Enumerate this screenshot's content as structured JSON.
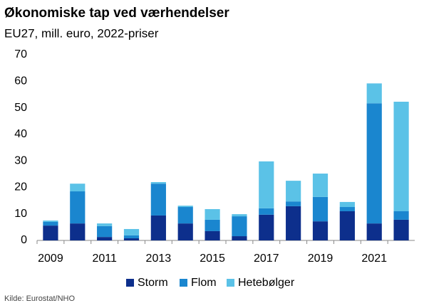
{
  "chart_data": {
    "type": "stacked-bar",
    "title": "Økonomiske tap ved værhendelser",
    "subtitle": "EU27, mill. euro, 2022-priser",
    "source": "Kilde: Eurostat/NHO",
    "categories": [
      "2009",
      null,
      "2011",
      null,
      "2013",
      null,
      "2015",
      null,
      "2017",
      null,
      "2019",
      null,
      "2021",
      null
    ],
    "series": [
      {
        "name": "Storm",
        "color": "#0d2f8c",
        "values": [
          5.6,
          6.4,
          1.3,
          0.8,
          9.4,
          6.4,
          3.5,
          1.6,
          9.7,
          12.9,
          7.2,
          11.0,
          6.4,
          7.8
        ]
      },
      {
        "name": "Flom",
        "color": "#1a86cf",
        "values": [
          1.4,
          12.1,
          4.1,
          1.1,
          12.0,
          6.2,
          4.3,
          7.5,
          2.4,
          1.8,
          9.2,
          1.6,
          45.3,
          3.2
        ]
      },
      {
        "name": "Hetebølger",
        "color": "#5bc2e7",
        "values": [
          0.5,
          2.9,
          1.0,
          2.4,
          0.6,
          0.5,
          4.0,
          0.8,
          17.7,
          7.8,
          8.8,
          1.9,
          7.5,
          41.3
        ]
      }
    ],
    "ylim": [
      0,
      70
    ],
    "yticks": [
      0,
      10,
      20,
      30,
      40,
      50,
      60,
      70
    ],
    "grid": false,
    "legend": "bottom"
  }
}
